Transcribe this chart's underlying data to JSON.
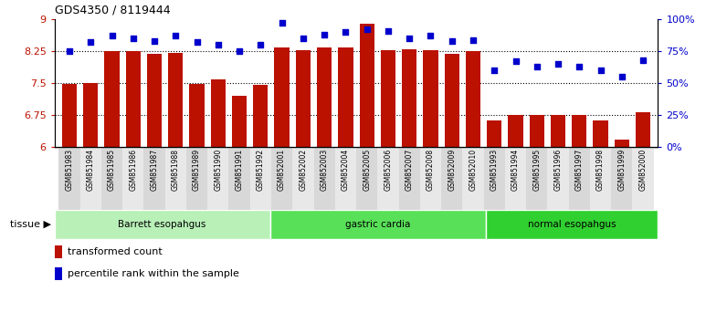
{
  "title": "GDS4350 / 8119444",
  "samples": [
    "GSM851983",
    "GSM851984",
    "GSM851985",
    "GSM851986",
    "GSM851987",
    "GSM851988",
    "GSM851989",
    "GSM851990",
    "GSM851991",
    "GSM851992",
    "GSM852001",
    "GSM852002",
    "GSM852003",
    "GSM852004",
    "GSM852005",
    "GSM852006",
    "GSM852007",
    "GSM852008",
    "GSM852009",
    "GSM852010",
    "GSM851993",
    "GSM851994",
    "GSM851995",
    "GSM851996",
    "GSM851997",
    "GSM851998",
    "GSM851999",
    "GSM852000"
  ],
  "bar_values": [
    7.48,
    7.5,
    8.25,
    8.25,
    8.18,
    8.22,
    7.48,
    7.58,
    7.2,
    7.45,
    8.35,
    8.28,
    8.35,
    8.35,
    8.9,
    8.28,
    8.3,
    8.28,
    8.18,
    8.25,
    6.62,
    6.75,
    6.75,
    6.75,
    6.75,
    6.62,
    6.18,
    6.82
  ],
  "dot_values": [
    75,
    82,
    87,
    85,
    83,
    87,
    82,
    80,
    75,
    80,
    97,
    85,
    88,
    90,
    92,
    91,
    85,
    87,
    83,
    84,
    60,
    67,
    63,
    65,
    63,
    60,
    55,
    68
  ],
  "groups": [
    {
      "label": "Barrett esopahgus",
      "start": 0,
      "end": 10,
      "color": "#b8f0b8"
    },
    {
      "label": "gastric cardia",
      "start": 10,
      "end": 20,
      "color": "#58e058"
    },
    {
      "label": "normal esopahgus",
      "start": 20,
      "end": 28,
      "color": "#30d030"
    }
  ],
  "ylim_left": [
    6,
    9
  ],
  "ylim_right": [
    0,
    100
  ],
  "yticks_left": [
    6,
    6.75,
    7.5,
    8.25,
    9
  ],
  "ytick_labels_left": [
    "6",
    "6.75",
    "7.5",
    "8.25",
    "9"
  ],
  "yticks_right": [
    0,
    25,
    50,
    75,
    100
  ],
  "ytick_labels_right": [
    "0%",
    "25%",
    "50%",
    "75%",
    "100%"
  ],
  "hlines": [
    6.75,
    7.5,
    8.25
  ],
  "bar_color": "#bb1100",
  "dot_color": "#0000cc",
  "bar_width": 0.7,
  "tick_gray": "#cccccc",
  "label_gray": "#aaaaaa"
}
